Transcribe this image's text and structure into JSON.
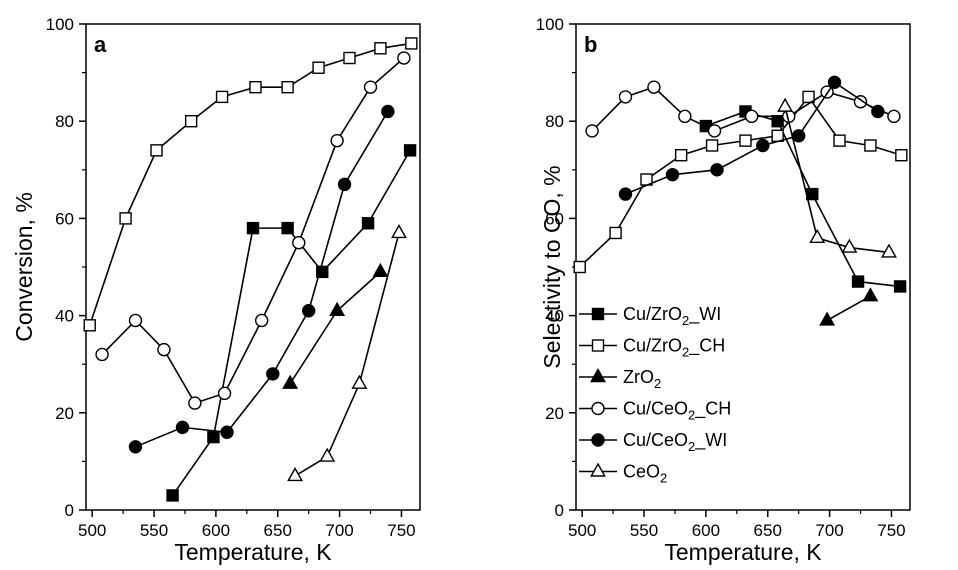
{
  "chart_data": [
    {
      "type": "line",
      "panel_label": "a",
      "xlabel": "Temperature, K",
      "ylabel": "Conversion, %",
      "xlim": [
        495,
        765
      ],
      "ylim": [
        0,
        100
      ],
      "xticks": [
        500,
        550,
        600,
        650,
        700,
        750
      ],
      "yticks": [
        0,
        20,
        40,
        60,
        80,
        100
      ],
      "grid": false,
      "series": [
        {
          "name": "Cu/ZrO2_WI",
          "marker": "square-filled",
          "x": [
            565,
            598,
            630,
            658,
            686,
            723,
            757
          ],
          "y": [
            3,
            15,
            58,
            58,
            49,
            59,
            74
          ]
        },
        {
          "name": "Cu/ZrO2_CH",
          "marker": "square-open",
          "x": [
            498,
            527,
            552,
            580,
            605,
            632,
            658,
            683,
            708,
            733,
            758
          ],
          "y": [
            38,
            60,
            74,
            80,
            85,
            87,
            87,
            91,
            93,
            95,
            96
          ]
        },
        {
          "name": "ZrO2",
          "marker": "triangle-filled",
          "x": [
            660,
            698,
            733
          ],
          "y": [
            26,
            41,
            49
          ]
        },
        {
          "name": "Cu/CeO2_CH",
          "marker": "circle-open",
          "x": [
            508,
            535,
            558,
            583,
            607,
            637,
            667,
            698,
            725,
            752
          ],
          "y": [
            32,
            39,
            33,
            22,
            24,
            39,
            55,
            76,
            87,
            93
          ]
        },
        {
          "name": "Cu/CeO2_WI",
          "marker": "circle-filled",
          "x": [
            535,
            573,
            609,
            646,
            675,
            704,
            739
          ],
          "y": [
            13,
            17,
            16,
            28,
            41,
            67,
            82
          ]
        },
        {
          "name": "CeO2",
          "marker": "triangle-open",
          "x": [
            664,
            690,
            716,
            748
          ],
          "y": [
            7,
            11,
            26,
            57
          ]
        }
      ]
    },
    {
      "type": "line",
      "panel_label": "b",
      "xlabel": "Temperature, K",
      "ylabel": "Selectivity to CO, %",
      "xlim": [
        495,
        765
      ],
      "ylim": [
        0,
        100
      ],
      "xticks": [
        500,
        550,
        600,
        650,
        700,
        750
      ],
      "yticks": [
        0,
        20,
        40,
        60,
        80,
        100
      ],
      "grid": false,
      "legend": {
        "position": "lower-left",
        "entries": [
          {
            "parts": [
              "Cu/ZrO",
              "2",
              "_WI"
            ],
            "series": "Cu/ZrO2_WI"
          },
          {
            "parts": [
              "Cu/ZrO",
              "2",
              "_CH"
            ],
            "series": "Cu/ZrO2_CH"
          },
          {
            "parts": [
              "ZrO",
              "2",
              ""
            ],
            "series": "ZrO2"
          },
          {
            "parts": [
              "Cu/CeO",
              "2",
              "_CH"
            ],
            "series": "Cu/CeO2_CH"
          },
          {
            "parts": [
              "Cu/CeO",
              "2",
              "_WI"
            ],
            "series": "Cu/CeO2_WI"
          },
          {
            "parts": [
              "CeO",
              "2",
              ""
            ],
            "series": "CeO2"
          }
        ]
      },
      "series": [
        {
          "name": "Cu/ZrO2_WI",
          "marker": "square-filled",
          "x": [
            600,
            632,
            658,
            686,
            723,
            757
          ],
          "y": [
            79,
            82,
            80,
            65,
            47,
            46
          ]
        },
        {
          "name": "Cu/ZrO2_CH",
          "marker": "square-open",
          "x": [
            498,
            527,
            552,
            580,
            605,
            632,
            658,
            683,
            708,
            733,
            758
          ],
          "y": [
            50,
            57,
            68,
            73,
            75,
            76,
            77,
            85,
            76,
            75,
            73
          ]
        },
        {
          "name": "ZrO2",
          "marker": "triangle-filled",
          "x": [
            698,
            733
          ],
          "y": [
            39,
            44
          ]
        },
        {
          "name": "Cu/CeO2_CH",
          "marker": "circle-open",
          "x": [
            508,
            535,
            558,
            583,
            607,
            637,
            667,
            698,
            725,
            752
          ],
          "y": [
            78,
            85,
            87,
            81,
            78,
            81,
            81,
            86,
            84,
            81
          ]
        },
        {
          "name": "Cu/CeO2_WI",
          "marker": "circle-filled",
          "x": [
            535,
            573,
            609,
            646,
            675,
            704,
            739
          ],
          "y": [
            65,
            69,
            70,
            75,
            77,
            88,
            82
          ]
        },
        {
          "name": "CeO2",
          "marker": "triangle-open",
          "x": [
            664,
            690,
            716,
            748
          ],
          "y": [
            83,
            56,
            54,
            53
          ]
        }
      ]
    }
  ]
}
